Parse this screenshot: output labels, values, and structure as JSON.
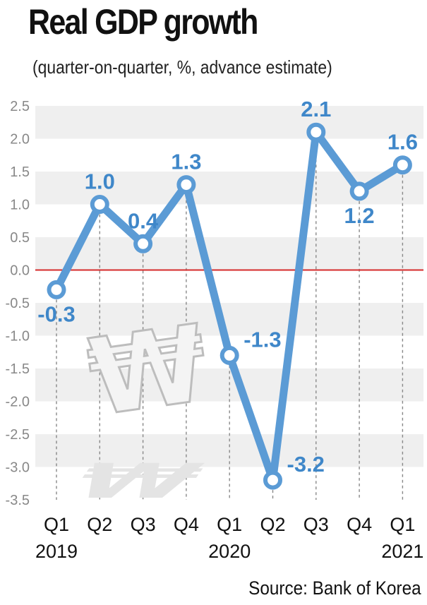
{
  "header": {
    "title": "Real GDP growth",
    "subtitle": "(quarter-on-quarter, %, advance estimate)",
    "source": "Source: Bank of Korea"
  },
  "decoration": {
    "icon": "won-sign-icon",
    "glyph": "₩"
  },
  "colors": {
    "line": "#5b9bd5",
    "marker_fill": "#ffffff",
    "data_label": "#3f87c9",
    "zero_line": "#d62b2b",
    "band": "#efefef",
    "guide": "#888888"
  },
  "chart_data": {
    "type": "line",
    "title": "Real GDP growth",
    "subtitle": "(quarter-on-quarter, %, advance estimate)",
    "categories": [
      "Q1",
      "Q2",
      "Q3",
      "Q4",
      "Q1",
      "Q2",
      "Q3",
      "Q4",
      "Q1"
    ],
    "years": [
      {
        "label": "2019",
        "at_index": 0
      },
      {
        "label": "2020",
        "at_index": 4
      },
      {
        "label": "2021",
        "at_index": 8
      }
    ],
    "values": [
      -0.3,
      1.0,
      0.4,
      1.3,
      -1.3,
      -3.2,
      2.1,
      1.2,
      1.6
    ],
    "data_labels": [
      "-0.3",
      "1.0",
      "0.4",
      "1.3",
      "-1.3",
      "-3.2",
      "2.1",
      "1.2",
      "1.6"
    ],
    "label_positions": [
      "below",
      "above",
      "above",
      "above",
      "right",
      "right",
      "above",
      "below",
      "above"
    ],
    "yticks": [
      "2.5",
      "2.0",
      "1.5",
      "1.0",
      "0.5",
      "0.0",
      "-0.5",
      "-1.0",
      "-1.5",
      "-2.0",
      "-2.5",
      "-3.0",
      "-3.5"
    ],
    "ylim": [
      -3.5,
      2.5
    ],
    "ystep": 0.5,
    "reference_line": 0,
    "grid": "alternating-bands",
    "xlabel": "",
    "ylabel": ""
  }
}
